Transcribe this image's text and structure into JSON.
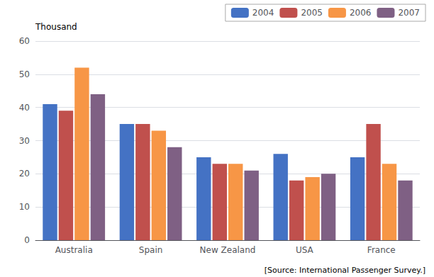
{
  "chart_data": {
    "type": "bar",
    "ylabel": "Thousand",
    "annotations": [
      "[Source: International Passenger Survey.]"
    ],
    "categories": [
      "Australia",
      "Spain",
      "New Zealand",
      "USA",
      "France"
    ],
    "series": [
      {
        "name": "2004",
        "color": "#4472C4",
        "values": [
          41,
          35,
          25,
          26,
          25
        ]
      },
      {
        "name": "2005",
        "color": "#C0504D",
        "values": [
          39,
          35,
          23,
          18,
          35
        ]
      },
      {
        "name": "2006",
        "color": "#F79646",
        "values": [
          52,
          33,
          23,
          19,
          23
        ]
      },
      {
        "name": "2007",
        "color": "#7F6084",
        "values": [
          44,
          28,
          21,
          20,
          18
        ]
      }
    ],
    "ylim": [
      0,
      60
    ],
    "yticks": [
      0,
      10,
      20,
      30,
      40,
      50,
      60
    ],
    "grid": true,
    "legend": "upper right"
  }
}
